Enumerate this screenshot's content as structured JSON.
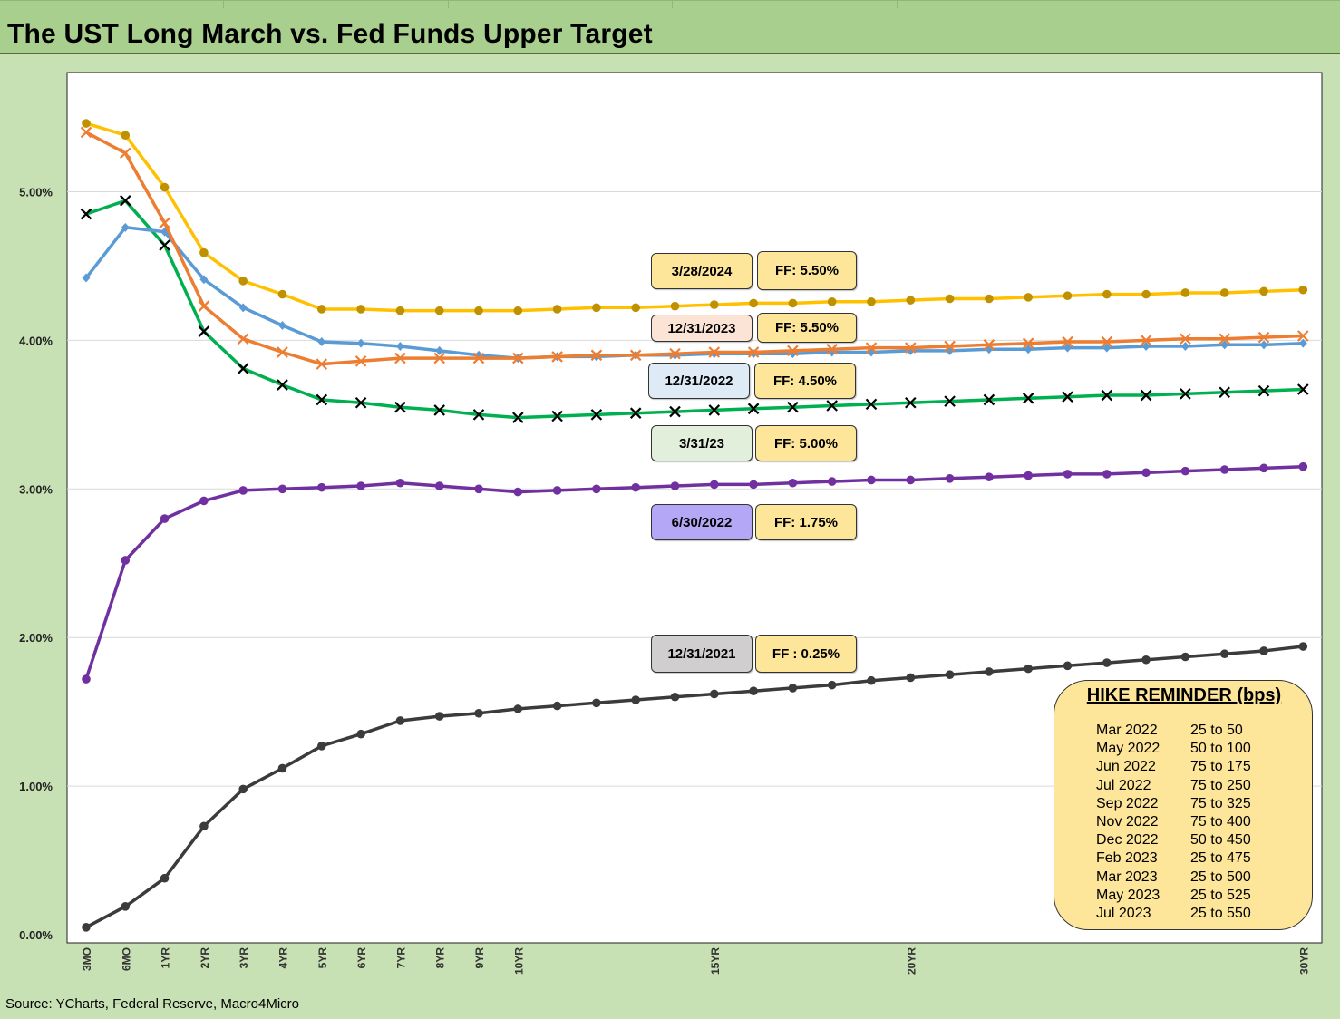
{
  "title": "The UST Long March vs. Fed Funds Upper Target",
  "source": "Source: YCharts, Federal Reserve, Macro4Micro",
  "chart_data": {
    "type": "line",
    "categories": [
      "3MO",
      "6MO",
      "1YR",
      "2YR",
      "3YR",
      "4YR",
      "5YR",
      "6YR",
      "7YR",
      "8YR",
      "9YR",
      "10YR",
      "11YR",
      "12YR",
      "13YR",
      "14YR",
      "15YR",
      "16YR",
      "17YR",
      "18YR",
      "19YR",
      "20YR",
      "21YR",
      "22YR",
      "23YR",
      "24YR",
      "25YR",
      "26YR",
      "27YR",
      "28YR",
      "29YR",
      "30YR"
    ],
    "x_tick_labels": [
      "3MO",
      "6MO",
      "1YR",
      "2YR",
      "3YR",
      "4YR",
      "5YR",
      "6YR",
      "7YR",
      "8YR",
      "9YR",
      "10YR",
      "",
      "",
      "",
      "",
      "15YR",
      "",
      "",
      "",
      "",
      "20YR",
      "",
      "",
      "",
      "",
      "",
      "",
      "",
      "",
      "",
      "30YR"
    ],
    "y_ticks": [
      "0.00%",
      "1.00%",
      "2.00%",
      "3.00%",
      "4.00%",
      "5.00%"
    ],
    "ylim": [
      0,
      5.7
    ],
    "grid": "horizontal",
    "xlabel": "",
    "ylabel": "",
    "series": [
      {
        "color": "#3b3b3b",
        "marker": "circle",
        "values": [
          0.05,
          0.19,
          0.38,
          0.73,
          0.98,
          1.12,
          1.27,
          1.35,
          1.44,
          1.47,
          1.49,
          1.52,
          1.54,
          1.56,
          1.58,
          1.6,
          1.62,
          1.64,
          1.66,
          1.68,
          1.71,
          1.73,
          1.75,
          1.77,
          1.79,
          1.81,
          1.83,
          1.85,
          1.87,
          1.89,
          1.91,
          1.94
        ]
      },
      {
        "color": "#7030a0",
        "marker": "circle",
        "values": [
          1.72,
          2.52,
          2.8,
          2.92,
          2.99,
          3.0,
          3.01,
          3.02,
          3.04,
          3.02,
          3.0,
          2.98,
          2.99,
          3.0,
          3.01,
          3.02,
          3.03,
          3.03,
          3.04,
          3.05,
          3.06,
          3.06,
          3.07,
          3.08,
          3.09,
          3.1,
          3.1,
          3.11,
          3.12,
          3.13,
          3.14,
          3.15
        ]
      },
      {
        "color": "#00b050",
        "marker": "x",
        "values": [
          4.85,
          4.94,
          4.64,
          4.06,
          3.81,
          3.7,
          3.6,
          3.58,
          3.55,
          3.53,
          3.5,
          3.48,
          3.49,
          3.5,
          3.51,
          3.52,
          3.53,
          3.54,
          3.55,
          3.56,
          3.57,
          3.58,
          3.59,
          3.6,
          3.61,
          3.62,
          3.63,
          3.63,
          3.64,
          3.65,
          3.66,
          3.67
        ]
      },
      {
        "color": "#5b9bd5",
        "marker": "diamond",
        "values": [
          4.42,
          4.76,
          4.73,
          4.41,
          4.22,
          4.1,
          3.99,
          3.98,
          3.96,
          3.93,
          3.9,
          3.88,
          3.89,
          3.89,
          3.9,
          3.9,
          3.91,
          3.91,
          3.91,
          3.92,
          3.92,
          3.93,
          3.93,
          3.94,
          3.94,
          3.95,
          3.95,
          3.96,
          3.96,
          3.97,
          3.97,
          3.98
        ]
      },
      {
        "color": "#ed7d31",
        "marker": "x",
        "values": [
          5.4,
          5.26,
          4.79,
          4.23,
          4.01,
          3.92,
          3.84,
          3.86,
          3.88,
          3.88,
          3.88,
          3.88,
          3.89,
          3.9,
          3.9,
          3.91,
          3.92,
          3.92,
          3.93,
          3.94,
          3.95,
          3.95,
          3.96,
          3.97,
          3.98,
          3.99,
          3.99,
          4.0,
          4.01,
          4.01,
          4.02,
          4.03
        ]
      },
      {
        "color": "#ffc000",
        "marker": "circle",
        "marker_color": "#bf9000",
        "values": [
          5.46,
          5.38,
          5.03,
          4.59,
          4.4,
          4.31,
          4.21,
          4.21,
          4.2,
          4.2,
          4.2,
          4.2,
          4.21,
          4.22,
          4.22,
          4.23,
          4.24,
          4.25,
          4.25,
          4.26,
          4.26,
          4.27,
          4.28,
          4.28,
          4.29,
          4.3,
          4.31,
          4.31,
          4.32,
          4.32,
          4.33,
          4.34
        ]
      }
    ]
  },
  "labels": [
    {
      "date": "3/28/2024",
      "ff": "FF: 5.50%",
      "date_bg": "#fde59a"
    },
    {
      "date": "12/31/2023",
      "ff": "FF: 5.50%",
      "date_bg": "#fbe4d5"
    },
    {
      "date": "12/31/2022",
      "ff": "FF: 4.50%",
      "date_bg": "#deebf7"
    },
    {
      "date": "3/31/23",
      "ff": "FF: 5.00%",
      "date_bg": "#e2efda"
    },
    {
      "date": "6/30/2022",
      "ff": "FF: 1.75%",
      "date_bg": "#b4a7f5"
    },
    {
      "date": "12/31/2021",
      "ff": "FF : 0.25%",
      "date_bg": "#d0cece"
    }
  ],
  "ff_bg": "#fde59a",
  "hike_reminder": {
    "title": "HIKE REMINDER (bps)",
    "rows": [
      {
        "month": "Mar 2022",
        "hike": "25 to 50"
      },
      {
        "month": "May 2022",
        "hike": "50 to 100"
      },
      {
        "month": "Jun 2022",
        "hike": "75 to 175"
      },
      {
        "month": "Jul 2022",
        "hike": "75 to 250"
      },
      {
        "month": "Sep 2022",
        "hike": "75 to 325"
      },
      {
        "month": "Nov 2022",
        "hike": "75 to 400"
      },
      {
        "month": "Dec 2022",
        "hike": "50 to 450"
      },
      {
        "month": "Feb 2023",
        "hike": "25 to 475"
      },
      {
        "month": "Mar 2023",
        "hike": "25 to 500"
      },
      {
        "month": "May 2023",
        "hike": "25 to 525"
      },
      {
        "month": "Jul 2023",
        "hike": "25 to 550"
      }
    ]
  }
}
